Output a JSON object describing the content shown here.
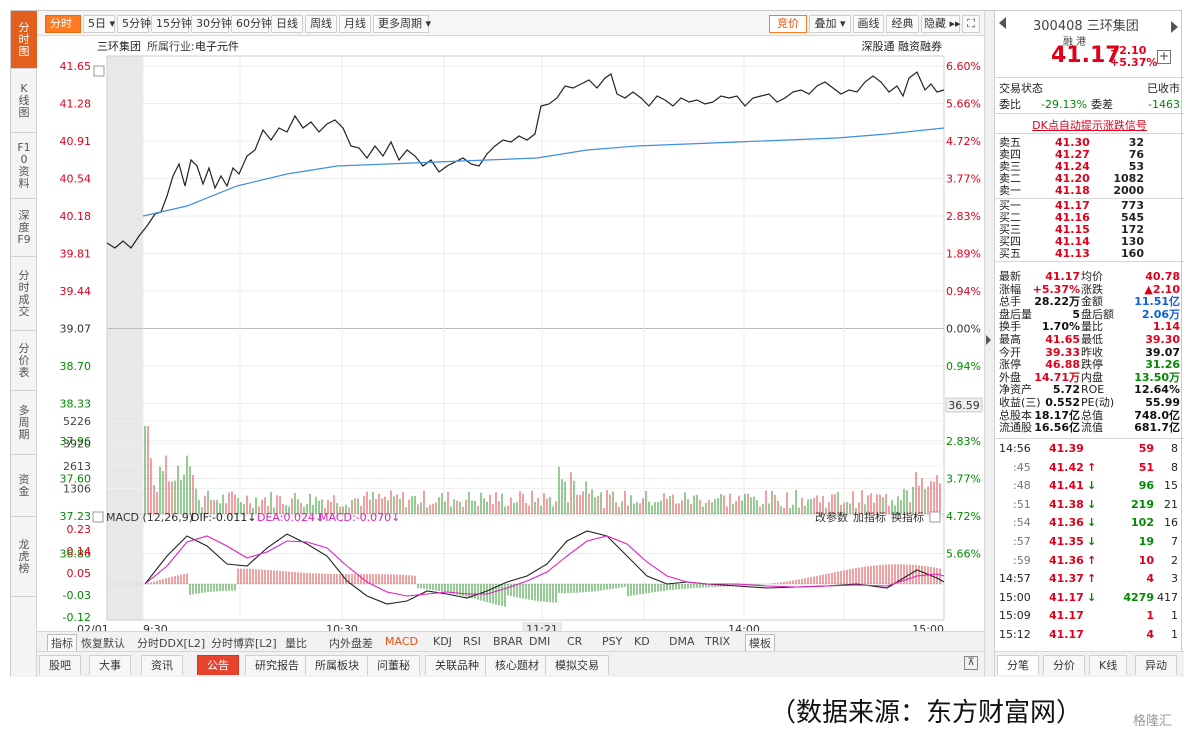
{
  "left_nav": [
    {
      "label": "分时图",
      "active": true
    },
    {
      "label": "K线图"
    },
    {
      "label": "F10资料"
    },
    {
      "label": "深度F9"
    },
    {
      "label": "分时成交"
    },
    {
      "label": "分价表"
    },
    {
      "label": "多周期"
    },
    {
      "label": "资金"
    },
    {
      "label": "龙虎榜"
    }
  ],
  "toolbar": {
    "periods": [
      "分时",
      "5日 ▾",
      "5分钟",
      "15分钟",
      "30分钟",
      "60分钟",
      "日线",
      "周线",
      "月线",
      "更多周期 ▾"
    ],
    "right": [
      "竞价",
      "叠加 ▾",
      "画线",
      "经典",
      "隐藏 ▸▸",
      "⛶"
    ]
  },
  "chart_header": {
    "name": "三环集团",
    "industry_label": "所属行业:",
    "industry": "电子元件",
    "badges": "深股通  融资融券"
  },
  "price_axis": {
    "left": [
      "41.65",
      "41.28",
      "40.91",
      "40.54",
      "40.18",
      "39.81",
      "39.44",
      "39.07",
      "38.70",
      "38.33",
      "37.96",
      "37.60",
      "37.23",
      "36.86"
    ],
    "right": [
      "6.60%",
      "5.66%",
      "4.72%",
      "3.77%",
      "2.83%",
      "1.89%",
      "0.94%",
      "0.00%",
      "0.94%",
      "1.89%",
      "2.83%",
      "3.77%",
      "4.72%",
      "5.66%"
    ],
    "low_value_box": "36.59"
  },
  "volume_axis": [
    "5226",
    "3920",
    "2613",
    "1306"
  ],
  "macd": {
    "title": "MACD (12,26,9)",
    "dif": "DIF:-0.011↓",
    "dea": "DEA:0.024↓",
    "macd": "MACD:-0.070↓",
    "actions": [
      "改参数",
      "加指标",
      "换指标"
    ],
    "axis": [
      "0.23",
      "0.14",
      "0.05",
      "-0.03",
      "-0.12"
    ]
  },
  "time_axis": {
    "date": "02/01",
    "labels": [
      "9:30",
      "10:30",
      "11:21",
      "14:00",
      "15:00"
    ]
  },
  "sub_tabs": [
    "指标",
    "恢复默认",
    "分时DDX[L2]",
    "分时博弈[L2]",
    "量比",
    "内外盘差",
    "MACD",
    "KDJ",
    "RSI",
    "BRAR",
    "DMI",
    "CR",
    "PSY",
    "KD",
    "DMA",
    "TRIX",
    "模板"
  ],
  "bottom_tabs": [
    "股吧",
    "大事",
    "资讯",
    "公告",
    "研究报告",
    "所属板块",
    "问董秘",
    "关联品种",
    "核心题材",
    "模拟交易"
  ],
  "quote": {
    "code": "300408",
    "name": "三环集团",
    "flags": "融 港",
    "price": "41.17",
    "change": "+2.10",
    "pct": "+5.37%",
    "trade_status_label": "交易状态",
    "trade_status": "已收市",
    "weibi_label": "委比",
    "weibi": "-29.13%",
    "weicha_label": "委差",
    "weicha": "-1463",
    "signal": "DK点自动提示涨跌信号"
  },
  "order_book": {
    "asks": [
      {
        "label": "卖五",
        "price": "41.30",
        "vol": "32"
      },
      {
        "label": "卖四",
        "price": "41.27",
        "vol": "76"
      },
      {
        "label": "卖三",
        "price": "41.24",
        "vol": "53"
      },
      {
        "label": "卖二",
        "price": "41.20",
        "vol": "1082"
      },
      {
        "label": "卖一",
        "price": "41.18",
        "vol": "2000"
      }
    ],
    "bids": [
      {
        "label": "买一",
        "price": "41.17",
        "vol": "773"
      },
      {
        "label": "买二",
        "price": "41.16",
        "vol": "545"
      },
      {
        "label": "买三",
        "price": "41.15",
        "vol": "172"
      },
      {
        "label": "买四",
        "price": "41.14",
        "vol": "130"
      },
      {
        "label": "买五",
        "price": "41.13",
        "vol": "160"
      }
    ]
  },
  "stats": [
    {
      "l1": "最新",
      "v1": "41.17",
      "c1": "red",
      "l2": "均价",
      "v2": "40.78",
      "c2": "red"
    },
    {
      "l1": "涨幅",
      "v1": "+5.37%",
      "c1": "red",
      "l2": "涨跌",
      "v2": "▲2.10",
      "c2": "red"
    },
    {
      "l1": "总手",
      "v1": "28.22万",
      "c1": "black",
      "l2": "金额",
      "v2": "11.51亿",
      "c2": "blue"
    },
    {
      "l1": "盘后量",
      "v1": "5",
      "c1": "black",
      "l2": "盘后额",
      "v2": "2.06万",
      "c2": "blue"
    },
    {
      "l1": "换手",
      "v1": "1.70%",
      "c1": "black",
      "l2": "量比",
      "v2": "1.14",
      "c2": "red"
    },
    {
      "l1": "最高",
      "v1": "41.65",
      "c1": "red",
      "l2": "最低",
      "v2": "39.30",
      "c2": "red"
    },
    {
      "l1": "今开",
      "v1": "39.33",
      "c1": "red",
      "l2": "昨收",
      "v2": "39.07",
      "c2": "black"
    },
    {
      "l1": "涨停",
      "v1": "46.88",
      "c1": "red",
      "l2": "跌停",
      "v2": "31.26",
      "c2": "green"
    },
    {
      "l1": "外盘",
      "v1": "14.71万",
      "c1": "red",
      "l2": "内盘",
      "v2": "13.50万",
      "c2": "green"
    },
    {
      "l1": "净资产",
      "v1": "5.72",
      "c1": "black",
      "l2": "ROE",
      "v2": "12.64%",
      "c2": "black"
    },
    {
      "l1": "收益(三)",
      "v1": "0.552",
      "c1": "black",
      "l2": "PE(动)",
      "v2": "55.99",
      "c2": "black"
    },
    {
      "l1": "总股本",
      "v1": "18.17亿",
      "c1": "black",
      "l2": "总值",
      "v2": "748.0亿",
      "c2": "black"
    },
    {
      "l1": "流通股",
      "v1": "16.56亿",
      "c1": "black",
      "l2": "流值",
      "v2": "681.7亿",
      "c2": "black"
    }
  ],
  "ticks": [
    {
      "t": "14:56",
      "p": "41.39",
      "a": "",
      "v": "59",
      "n": "8"
    },
    {
      "t": ":45",
      "p": "41.42",
      "a": "↑",
      "v": "51",
      "n": "8"
    },
    {
      "t": ":48",
      "p": "41.41",
      "a": "↓",
      "v": "96",
      "n": "15"
    },
    {
      "t": ":51",
      "p": "41.38",
      "a": "↓",
      "v": "219",
      "n": "21"
    },
    {
      "t": ":54",
      "p": "41.36",
      "a": "↓",
      "v": "102",
      "n": "16"
    },
    {
      "t": ":57",
      "p": "41.35",
      "a": "↓",
      "v": "19",
      "n": "7"
    },
    {
      "t": ":59",
      "p": "41.36",
      "a": "↑",
      "v": "10",
      "n": "2"
    },
    {
      "t": "14:57",
      "p": "41.37",
      "a": "↑",
      "v": "4",
      "n": "3"
    },
    {
      "t": "15:00",
      "p": "41.17",
      "a": "↓",
      "v": "4279",
      "n": "417"
    },
    {
      "t": "15:09",
      "p": "41.17",
      "a": "",
      "v": "1",
      "n": "1"
    },
    {
      "t": "15:12",
      "p": "41.17",
      "a": "",
      "v": "4",
      "n": "1"
    }
  ],
  "right_bottom_tabs": [
    "分笔",
    "分价",
    "K线",
    "异动"
  ],
  "caption": "（数据来源：东方财富网）",
  "watermark": "格隆汇"
}
